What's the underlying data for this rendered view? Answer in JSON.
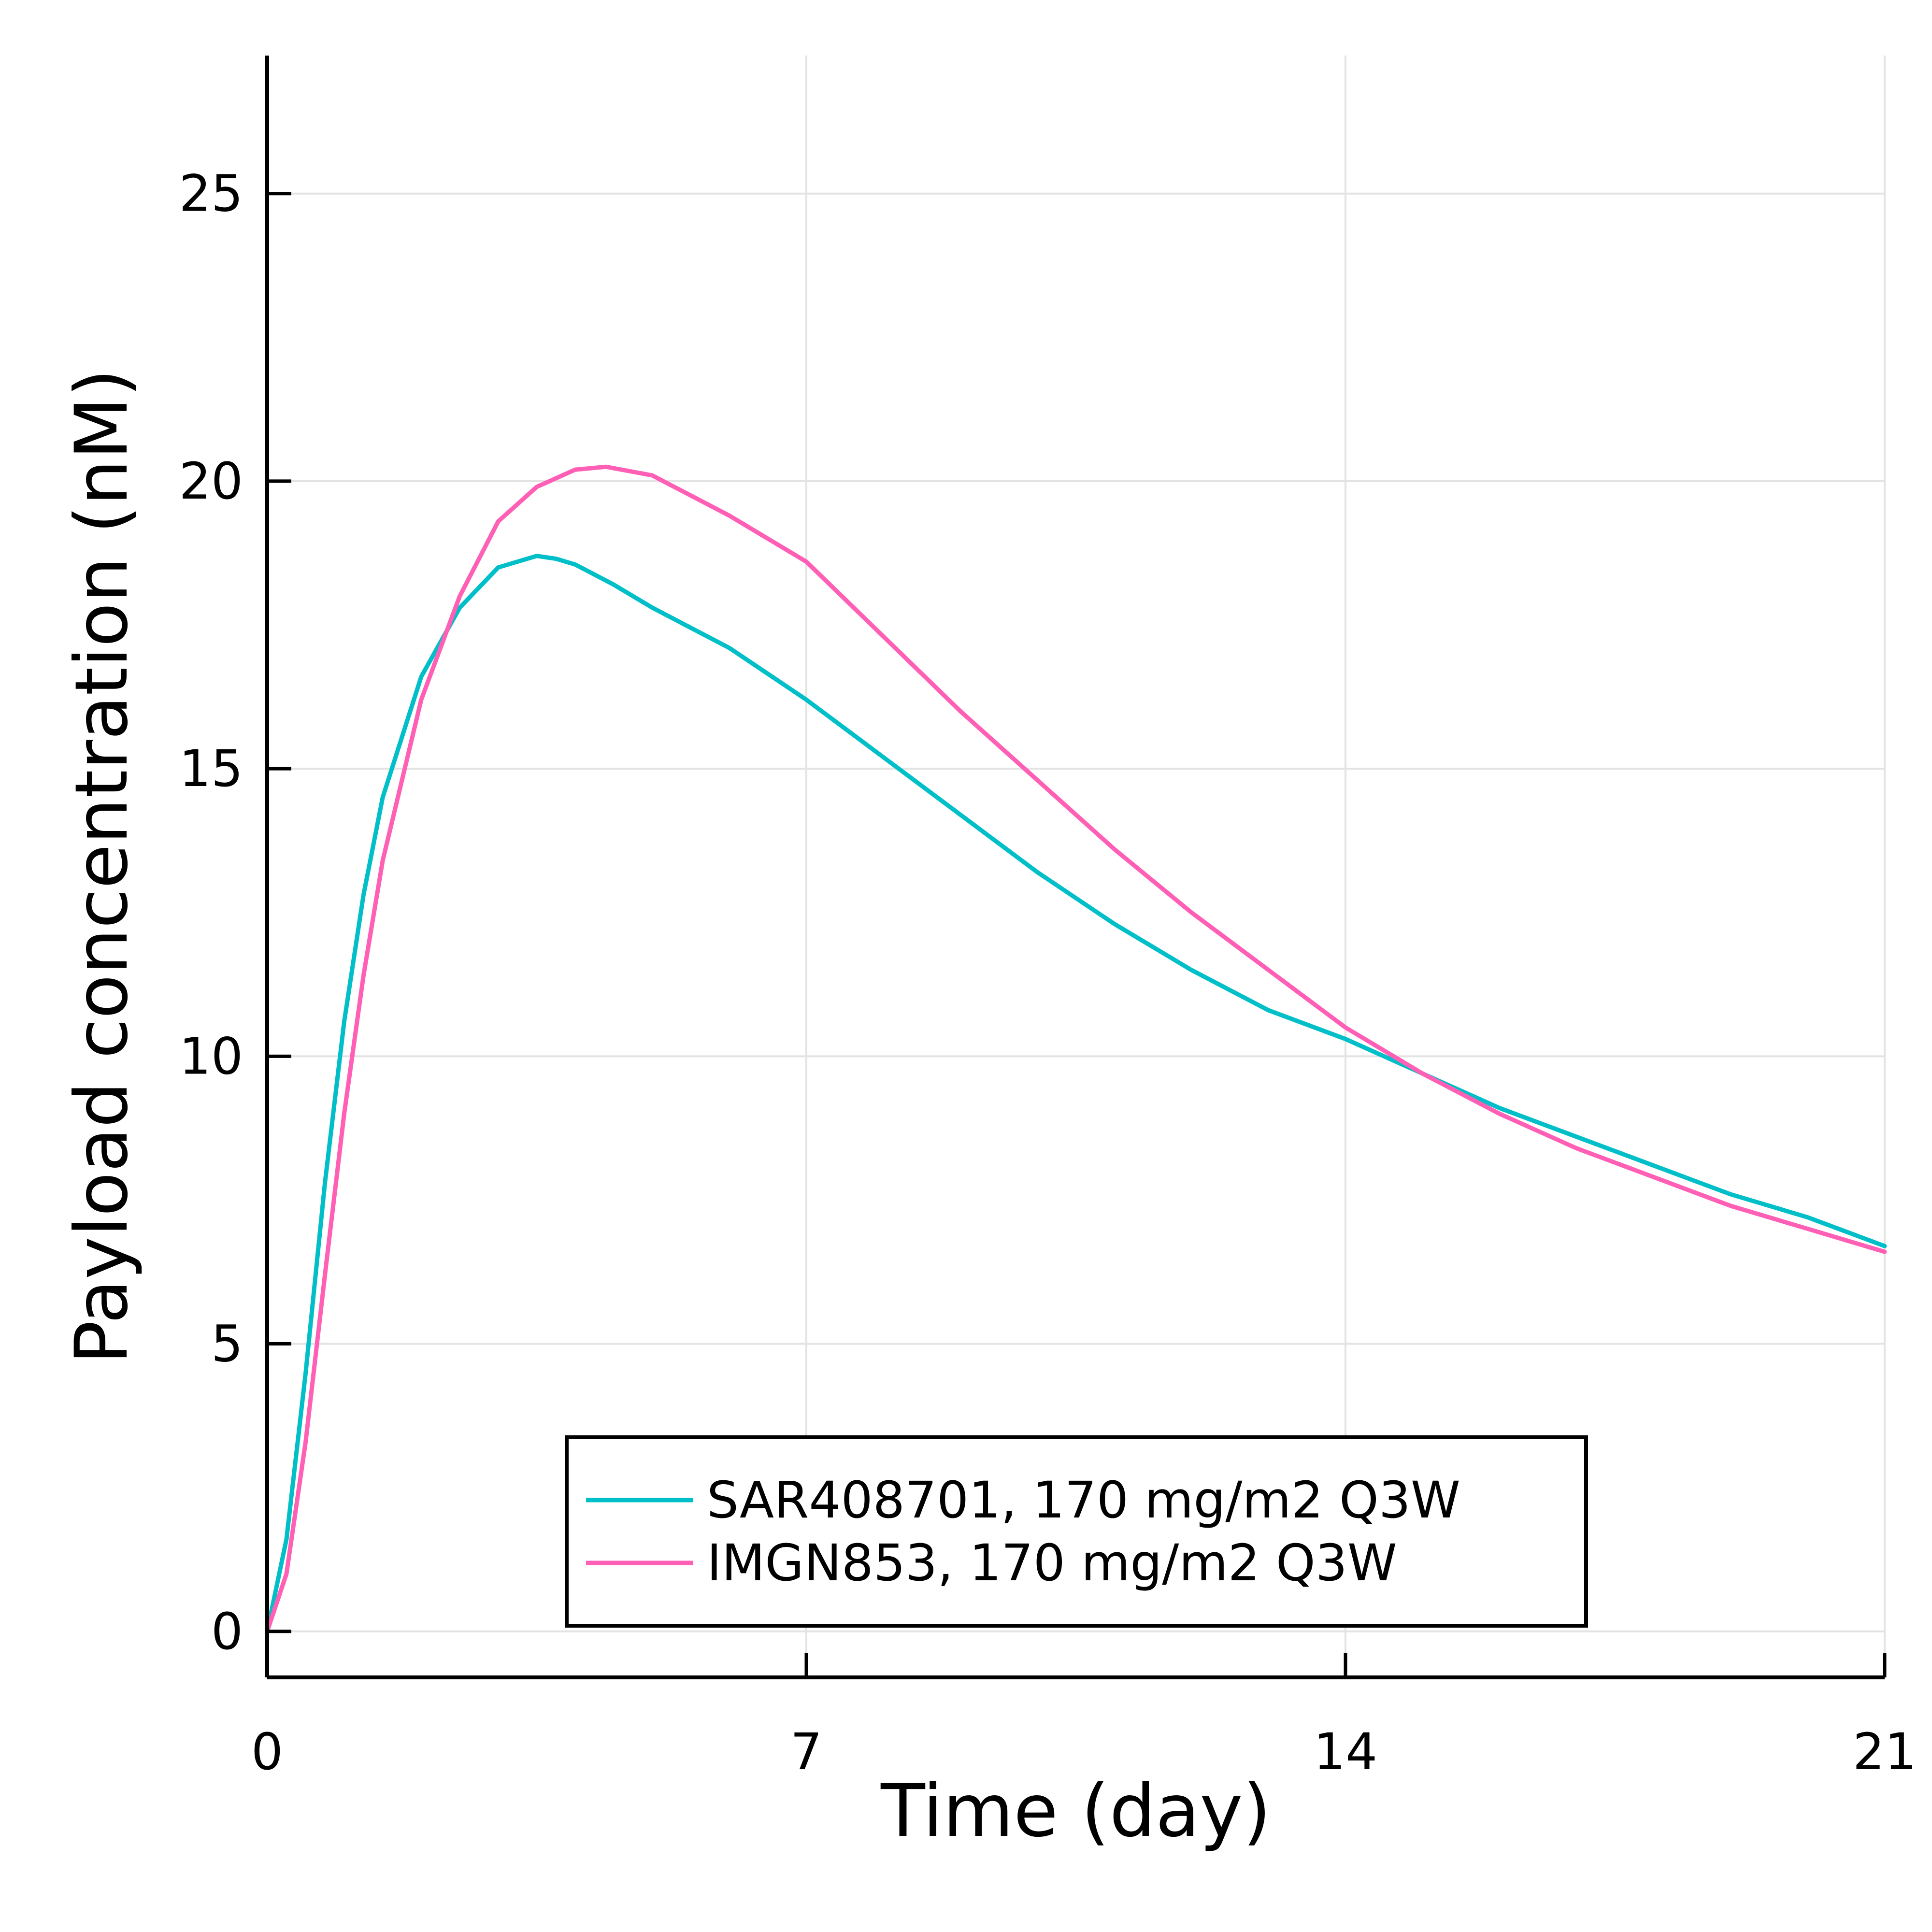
{
  "chart_data": {
    "type": "line",
    "xlabel": "Time (day)",
    "ylabel": "Payload concentration (nM)",
    "xlim": [
      0,
      21
    ],
    "ylim": [
      -0.8,
      27.4
    ],
    "xticks": [
      0,
      7,
      14,
      21
    ],
    "yticks": [
      0,
      5,
      10,
      15,
      20,
      25
    ],
    "grid": true,
    "legend_position": "bottom-center",
    "series": [
      {
        "name": "SAR408701, 170 mg/m2 Q3W",
        "color": "#00bfc8",
        "x": [
          0,
          0.25,
          0.5,
          0.75,
          1.0,
          1.25,
          1.5,
          2.0,
          2.5,
          3.0,
          3.5,
          3.75,
          4.0,
          4.5,
          5.0,
          6.0,
          7.0,
          8.0,
          9.0,
          10.0,
          11.0,
          12.0,
          13.0,
          14.0,
          15.0,
          16.0,
          17.0,
          18.0,
          19.0,
          20.0,
          21.0
        ],
        "y": [
          0,
          1.6,
          4.5,
          7.8,
          10.6,
          12.8,
          14.5,
          16.6,
          17.8,
          18.5,
          18.7,
          18.65,
          18.55,
          18.2,
          17.8,
          17.1,
          16.2,
          15.2,
          14.2,
          13.2,
          12.3,
          11.5,
          10.8,
          10.3,
          9.7,
          9.1,
          8.6,
          8.1,
          7.6,
          7.2,
          6.7
        ]
      },
      {
        "name": "IMGN853, 170 mg/m2 Q3W",
        "color": "#ff5fb4",
        "x": [
          0,
          0.25,
          0.5,
          0.75,
          1.0,
          1.25,
          1.5,
          2.0,
          2.5,
          3.0,
          3.5,
          4.0,
          4.4,
          5.0,
          6.0,
          7.0,
          8.0,
          9.0,
          10.0,
          11.0,
          12.0,
          13.0,
          14.0,
          15.0,
          16.0,
          17.0,
          18.0,
          19.0,
          20.0,
          21.0
        ],
        "y": [
          0,
          1.0,
          3.3,
          6.2,
          9.0,
          11.4,
          13.4,
          16.2,
          18.0,
          19.3,
          19.9,
          20.2,
          20.25,
          20.1,
          19.4,
          18.6,
          17.3,
          16.0,
          14.8,
          13.6,
          12.5,
          11.5,
          10.5,
          9.7,
          9.0,
          8.4,
          7.9,
          7.4,
          7.0,
          6.6
        ]
      }
    ]
  }
}
